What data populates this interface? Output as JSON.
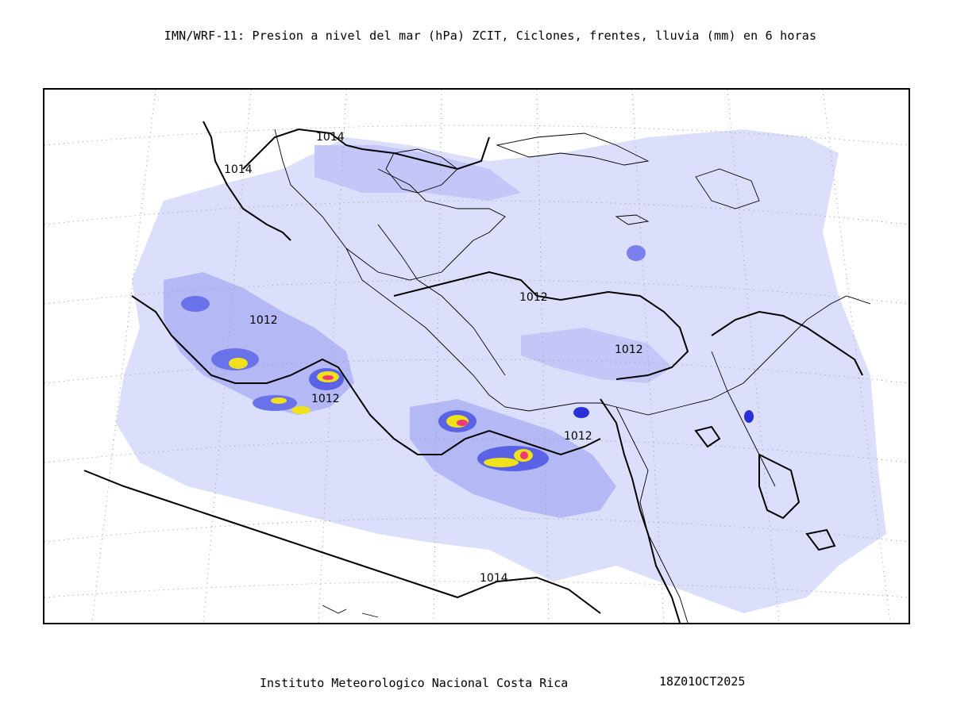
{
  "title": "IMN/WRF-11: Presion a nivel del mar (hPa) ZCIT, Ciclones, frentes, lluvia (mm) en 6 horas",
  "footer": {
    "institution": "Instituto Meteorologico Nacional Costa Rica",
    "valid_time": "18Z01OCT2025"
  },
  "isobars": [
    {
      "label": "1014",
      "value": 1014
    },
    {
      "label": "1014",
      "value": 1014
    },
    {
      "label": "1012",
      "value": 1012
    },
    {
      "label": "1012",
      "value": 1012
    },
    {
      "label": "1012",
      "value": 1012
    },
    {
      "label": "1012",
      "value": 1012
    },
    {
      "label": "1012",
      "value": 1012
    },
    {
      "label": "1014",
      "value": 1014
    }
  ],
  "colors": {
    "rain_light": "#d9dcfb",
    "rain_mid": "#a9aef3",
    "rain_strong": "#5a62e6",
    "rain_heavy": "#2a2fd6",
    "rain_extreme_yellow": "#f0e21a",
    "rain_extreme_pink": "#ee3a78",
    "isobar": "#000000",
    "coastline": "#000000",
    "grid": "#888888"
  }
}
